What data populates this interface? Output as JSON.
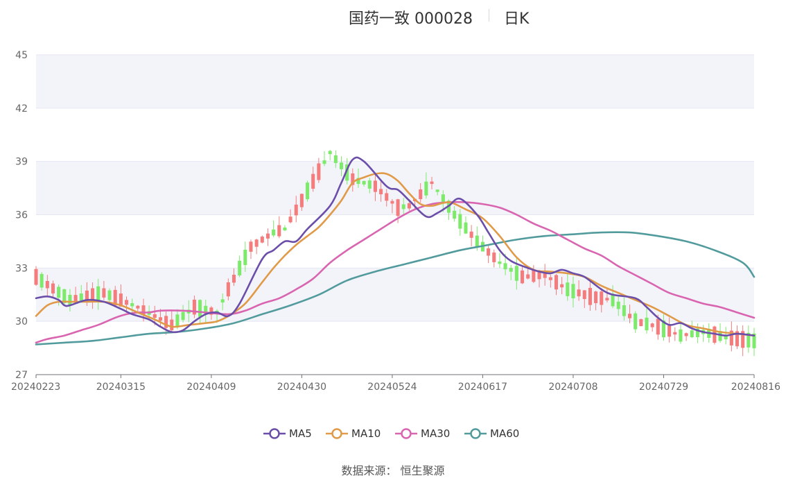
{
  "title": {
    "name": "国药一致 000028",
    "period": "日K"
  },
  "source": "数据来源： 恒生聚源",
  "chart_data": {
    "type": "candlestick",
    "title": "国药一致 000028",
    "period": "日K",
    "ylim": [
      27,
      45
    ],
    "y_ticks": [
      "27",
      "30",
      "33",
      "36",
      "39",
      "42",
      "45"
    ],
    "x_ticks": [
      "20240223",
      "20240315",
      "20240409",
      "20240430",
      "20240524",
      "20240617",
      "20240708",
      "20240729",
      "20240816"
    ],
    "x_tick_index": [
      0,
      15,
      31,
      47,
      63,
      79,
      95,
      111,
      127
    ],
    "grid": "horizontal",
    "legend_position": "bottom",
    "colors": {
      "up": "#f47c7c",
      "down": "#7dea6c",
      "ma5": "#6b4ea9",
      "ma10": "#e09a48",
      "ma30": "#d965b0",
      "ma60": "#529b9d",
      "band": "#f3f4fa"
    },
    "candle_count": 128,
    "candle_anchors": [
      [
        0,
        32.5
      ],
      [
        6,
        31.2
      ],
      [
        12,
        31.6
      ],
      [
        18,
        30.8
      ],
      [
        24,
        29.8
      ],
      [
        28,
        30.8
      ],
      [
        32,
        30.5
      ],
      [
        34,
        31.8
      ],
      [
        38,
        34.2
      ],
      [
        42,
        35.0
      ],
      [
        44,
        35.2
      ],
      [
        47,
        36.8
      ],
      [
        52,
        39.5
      ],
      [
        56,
        38.0
      ],
      [
        60,
        37.6
      ],
      [
        64,
        36.4
      ],
      [
        66,
        36.5
      ],
      [
        70,
        37.8
      ],
      [
        74,
        36.0
      ],
      [
        78,
        34.5
      ],
      [
        82,
        33.3
      ],
      [
        86,
        32.5
      ],
      [
        90,
        32.6
      ],
      [
        94,
        31.8
      ],
      [
        98,
        31.4
      ],
      [
        102,
        31.2
      ],
      [
        106,
        30.0
      ],
      [
        110,
        29.7
      ],
      [
        114,
        29.2
      ],
      [
        118,
        29.4
      ],
      [
        122,
        29.1
      ],
      [
        127,
        28.9
      ]
    ],
    "series": [
      {
        "name": "MA5",
        "color": "#6b4ea9",
        "points": [
          [
            0,
            31.3
          ],
          [
            2,
            31.4
          ],
          [
            4,
            31.2
          ],
          [
            5,
            30.9
          ],
          [
            6,
            30.9
          ],
          [
            9,
            31.2
          ],
          [
            12,
            31.1
          ],
          [
            15,
            30.7
          ],
          [
            17,
            30.4
          ],
          [
            20,
            30.1
          ],
          [
            22,
            29.7
          ],
          [
            24,
            29.4
          ],
          [
            26,
            29.5
          ],
          [
            28,
            30.0
          ],
          [
            30,
            30.4
          ],
          [
            32,
            30.5
          ],
          [
            34,
            30.3
          ],
          [
            36,
            31.0
          ],
          [
            40,
            33.5
          ],
          [
            42,
            34.0
          ],
          [
            44,
            34.5
          ],
          [
            46,
            34.5
          ],
          [
            48,
            35.2
          ],
          [
            52,
            36.5
          ],
          [
            54,
            37.8
          ],
          [
            56,
            39.1
          ],
          [
            58,
            39.0
          ],
          [
            62,
            37.6
          ],
          [
            64,
            37.4
          ],
          [
            66,
            36.8
          ],
          [
            69,
            35.9
          ],
          [
            71,
            36.1
          ],
          [
            73,
            36.5
          ],
          [
            75,
            36.9
          ],
          [
            78,
            36.0
          ],
          [
            80,
            35.0
          ],
          [
            82,
            34.0
          ],
          [
            84,
            33.4
          ],
          [
            87,
            33.0
          ],
          [
            89,
            32.8
          ],
          [
            91,
            32.7
          ],
          [
            93,
            32.9
          ],
          [
            95,
            32.7
          ],
          [
            97,
            32.5
          ],
          [
            100,
            31.8
          ],
          [
            102,
            31.5
          ],
          [
            106,
            31.3
          ],
          [
            108,
            30.8
          ],
          [
            110,
            30.2
          ],
          [
            112,
            29.8
          ],
          [
            114,
            29.9
          ],
          [
            116,
            29.6
          ],
          [
            118,
            29.4
          ],
          [
            120,
            29.3
          ],
          [
            122,
            29.2
          ],
          [
            124,
            29.3
          ],
          [
            127,
            29.2
          ]
        ]
      },
      {
        "name": "MA10",
        "color": "#e09a48",
        "points": [
          [
            0,
            30.3
          ],
          [
            2,
            30.9
          ],
          [
            4,
            31.1
          ],
          [
            6,
            31.1
          ],
          [
            9,
            31.1
          ],
          [
            12,
            31.1
          ],
          [
            15,
            30.9
          ],
          [
            18,
            30.5
          ],
          [
            21,
            30.1
          ],
          [
            24,
            29.7
          ],
          [
            27,
            29.8
          ],
          [
            30,
            29.9
          ],
          [
            32,
            30.0
          ],
          [
            34,
            30.3
          ],
          [
            37,
            31.0
          ],
          [
            40,
            32.2
          ],
          [
            42,
            33.0
          ],
          [
            44,
            33.7
          ],
          [
            46,
            34.3
          ],
          [
            48,
            34.8
          ],
          [
            50,
            35.3
          ],
          [
            52,
            36.0
          ],
          [
            54,
            36.8
          ],
          [
            56,
            37.8
          ],
          [
            58,
            38.1
          ],
          [
            60,
            38.3
          ],
          [
            62,
            38.3
          ],
          [
            64,
            37.9
          ],
          [
            66,
            37.2
          ],
          [
            68,
            36.6
          ],
          [
            70,
            36.5
          ],
          [
            73,
            36.7
          ],
          [
            76,
            36.3
          ],
          [
            79,
            35.8
          ],
          [
            82,
            34.8
          ],
          [
            85,
            33.6
          ],
          [
            88,
            32.9
          ],
          [
            91,
            32.8
          ],
          [
            94,
            32.7
          ],
          [
            97,
            32.5
          ],
          [
            100,
            32.0
          ],
          [
            103,
            31.6
          ],
          [
            106,
            31.2
          ],
          [
            109,
            30.8
          ],
          [
            112,
            30.3
          ],
          [
            115,
            29.8
          ],
          [
            118,
            29.6
          ],
          [
            121,
            29.4
          ],
          [
            124,
            29.3
          ],
          [
            127,
            29.2
          ]
        ]
      },
      {
        "name": "MA30",
        "color": "#d965b0",
        "points": [
          [
            0,
            28.8
          ],
          [
            2,
            29.0
          ],
          [
            5,
            29.2
          ],
          [
            8,
            29.5
          ],
          [
            11,
            29.8
          ],
          [
            14,
            30.2
          ],
          [
            16,
            30.4
          ],
          [
            18,
            30.5
          ],
          [
            20,
            30.5
          ],
          [
            22,
            30.6
          ],
          [
            26,
            30.6
          ],
          [
            30,
            30.5
          ],
          [
            34,
            30.4
          ],
          [
            37,
            30.6
          ],
          [
            40,
            31.0
          ],
          [
            43,
            31.3
          ],
          [
            46,
            31.8
          ],
          [
            49,
            32.4
          ],
          [
            52,
            33.3
          ],
          [
            55,
            34.0
          ],
          [
            58,
            34.6
          ],
          [
            61,
            35.2
          ],
          [
            64,
            35.8
          ],
          [
            67,
            36.3
          ],
          [
            70,
            36.6
          ],
          [
            73,
            36.7
          ],
          [
            76,
            36.7
          ],
          [
            79,
            36.6
          ],
          [
            82,
            36.4
          ],
          [
            85,
            36.0
          ],
          [
            88,
            35.5
          ],
          [
            91,
            35.1
          ],
          [
            94,
            34.6
          ],
          [
            97,
            34.1
          ],
          [
            100,
            33.7
          ],
          [
            103,
            33.1
          ],
          [
            106,
            32.6
          ],
          [
            109,
            32.1
          ],
          [
            112,
            31.6
          ],
          [
            115,
            31.3
          ],
          [
            118,
            31.0
          ],
          [
            121,
            30.8
          ],
          [
            124,
            30.5
          ],
          [
            127,
            30.2
          ]
        ]
      },
      {
        "name": "MA60",
        "color": "#529b9d",
        "points": [
          [
            0,
            28.7
          ],
          [
            5,
            28.8
          ],
          [
            10,
            28.9
          ],
          [
            15,
            29.1
          ],
          [
            20,
            29.3
          ],
          [
            25,
            29.4
          ],
          [
            30,
            29.6
          ],
          [
            35,
            29.9
          ],
          [
            40,
            30.4
          ],
          [
            45,
            30.9
          ],
          [
            50,
            31.5
          ],
          [
            55,
            32.3
          ],
          [
            60,
            32.8
          ],
          [
            65,
            33.2
          ],
          [
            70,
            33.6
          ],
          [
            75,
            34.0
          ],
          [
            80,
            34.3
          ],
          [
            85,
            34.6
          ],
          [
            90,
            34.8
          ],
          [
            95,
            34.9
          ],
          [
            100,
            35.0
          ],
          [
            105,
            35.0
          ],
          [
            110,
            34.8
          ],
          [
            115,
            34.5
          ],
          [
            120,
            34.0
          ],
          [
            125,
            33.3
          ],
          [
            127,
            32.5
          ]
        ]
      }
    ]
  }
}
